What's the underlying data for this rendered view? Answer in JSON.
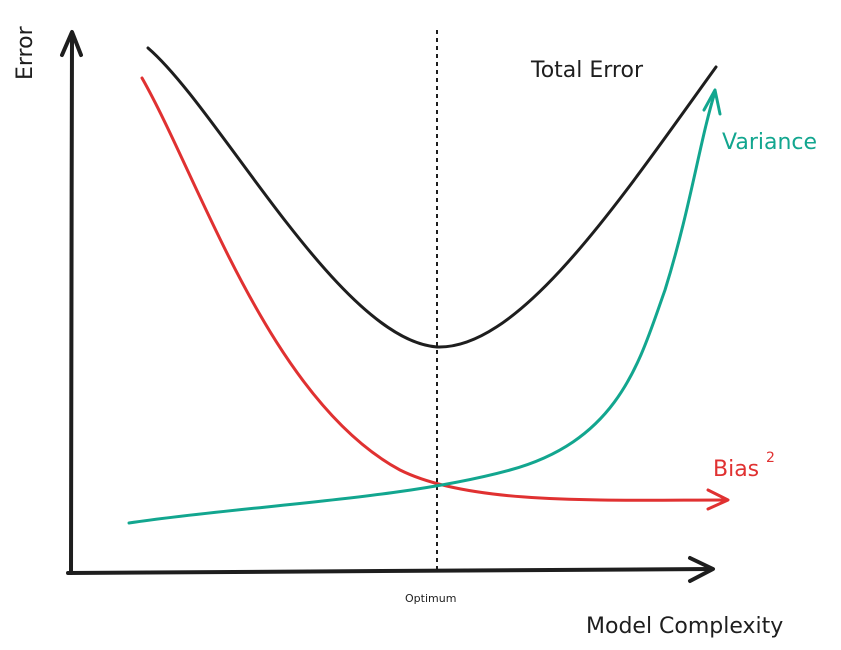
{
  "diagram": {
    "axes": {
      "y_label": "Error",
      "x_label": "Model Complexity",
      "optimum_label": "Optimum"
    },
    "curves": {
      "total_error": {
        "label": "Total Error",
        "color": "#1e1e1e"
      },
      "variance": {
        "label": "Variance",
        "color": "#12a68f"
      },
      "bias": {
        "label": "Bias",
        "superscript": "2",
        "color": "#e03131"
      }
    },
    "optimum_line_color": "#1e1e1e"
  }
}
